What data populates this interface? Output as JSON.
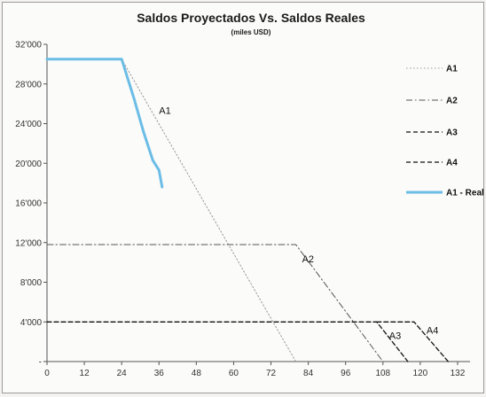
{
  "chart_data": {
    "type": "line",
    "title": "Saldos Proyectados Vs. Saldos Reales",
    "subtitle": "(miles USD)",
    "xlabel": "",
    "ylabel": "",
    "x_ticks": [
      "0",
      "12",
      "24",
      "36",
      "48",
      "60",
      "72",
      "84",
      "96",
      "108",
      "120",
      "132"
    ],
    "y_ticks": [
      "32'000",
      "28'000",
      "24'000",
      "20'000",
      "16'000",
      "12'000",
      "8'000",
      "4'000",
      "-"
    ],
    "xlim": [
      0,
      136
    ],
    "ylim": [
      0,
      32000
    ],
    "grid": false,
    "legend_position": "right",
    "series": [
      {
        "name": "A1",
        "style": "dotted",
        "color": "#9a9a9a",
        "width": 1,
        "points": [
          [
            0,
            30500
          ],
          [
            24,
            30500
          ],
          [
            80,
            0
          ]
        ]
      },
      {
        "name": "A2",
        "style": "dashdot",
        "color": "#555555",
        "width": 1,
        "points": [
          [
            0,
            11800
          ],
          [
            80,
            11800
          ],
          [
            108,
            0
          ]
        ]
      },
      {
        "name": "A3",
        "style": "dashed",
        "color": "#111111",
        "width": 1.3,
        "points": [
          [
            0,
            4000
          ],
          [
            106,
            4000
          ],
          [
            116,
            0
          ]
        ]
      },
      {
        "name": "A4",
        "style": "dashed",
        "color": "#111111",
        "width": 1.3,
        "points": [
          [
            106,
            4000
          ],
          [
            118,
            4000
          ],
          [
            129,
            0
          ]
        ]
      },
      {
        "name": "A1 - Real",
        "style": "solid",
        "color": "#6bbde6",
        "width": 3,
        "points": [
          [
            0,
            30500
          ],
          [
            24,
            30500
          ],
          [
            28,
            26500
          ],
          [
            31,
            23200
          ],
          [
            34,
            20300
          ],
          [
            36,
            19300
          ],
          [
            37,
            17600
          ]
        ]
      }
    ],
    "annotations": [
      {
        "text": "A1",
        "x": 36,
        "y": 25000
      },
      {
        "text": "A2",
        "x": 82,
        "y": 10000
      },
      {
        "text": "A3",
        "x": 110,
        "y": 2300
      },
      {
        "text": "A4",
        "x": 122,
        "y": 2800
      }
    ]
  }
}
